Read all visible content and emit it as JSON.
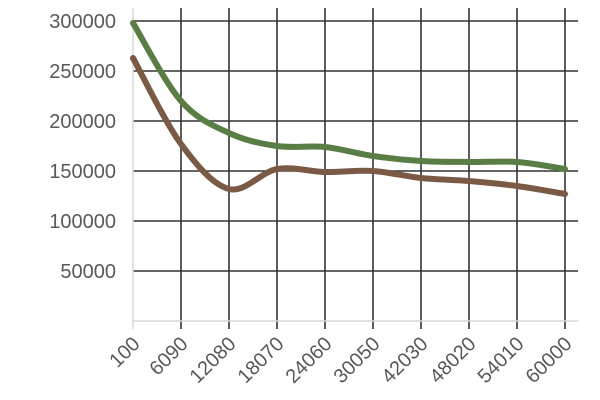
{
  "chart_data": {
    "type": "line",
    "title": "",
    "xlabel": "",
    "ylabel": "",
    "categories": [
      "100",
      "6090",
      "12080",
      "18070",
      "24060",
      "30050",
      "42030",
      "48020",
      "54010",
      "60000"
    ],
    "ylim": [
      0,
      300000
    ],
    "yticks": [
      "50000",
      "100000",
      "150000",
      "200000",
      "250000",
      "300000"
    ],
    "grid": true,
    "legend": "none",
    "series": [
      {
        "color": "#5a7d45",
        "values": [
          298000,
          220000,
          188000,
          175000,
          174000,
          165000,
          160000,
          159000,
          159000,
          152000
        ]
      },
      {
        "color": "#7a5a45",
        "values": [
          263000,
          177000,
          132000,
          152000,
          149000,
          150000,
          143000,
          140000,
          135000,
          127000
        ]
      }
    ]
  }
}
